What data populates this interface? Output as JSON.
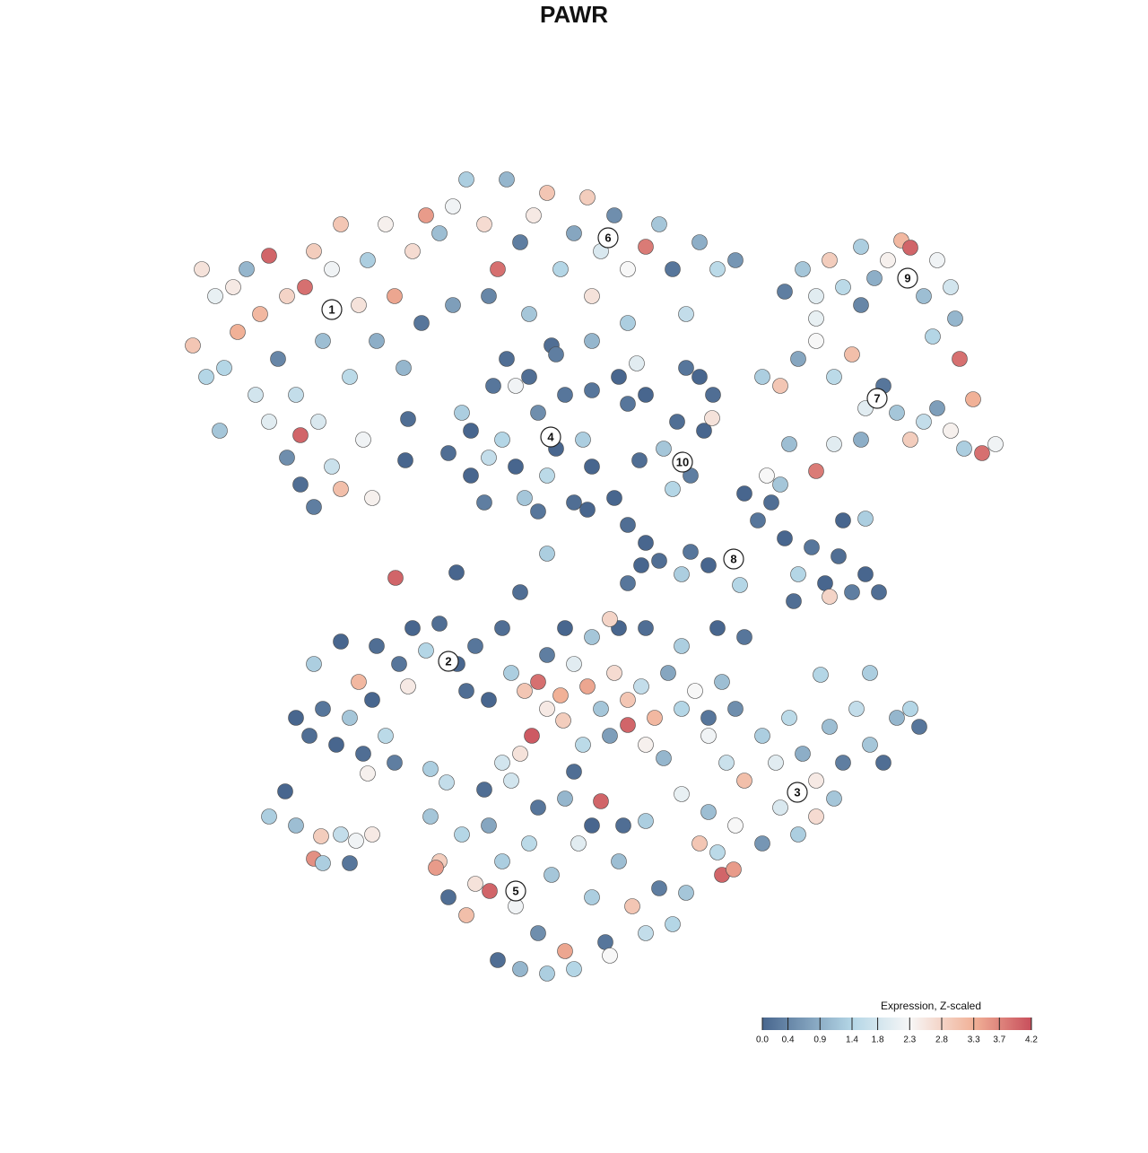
{
  "chart_data": {
    "type": "scatter",
    "title": "PAWR",
    "xlim": [
      0,
      930
    ],
    "ylim": [
      0,
      915
    ],
    "x": [
      15,
      30,
      45,
      60,
      75,
      90,
      100,
      110,
      120,
      130,
      140,
      150,
      155,
      160,
      170,
      180,
      190,
      200,
      210,
      220,
      230,
      240,
      250,
      260,
      270,
      135,
      150,
      170,
      180,
      120,
      100,
      85,
      65,
      40,
      25,
      135,
      205,
      215,
      50,
      290,
      305,
      320,
      340,
      355,
      365,
      380,
      395,
      410,
      425,
      440,
      455,
      470,
      485,
      500,
      520,
      535,
      550,
      565,
      580,
      600,
      620,
      345,
      390,
      415,
      460,
      500,
      510,
      460,
      275,
      305,
      675,
      695,
      710,
      725,
      740,
      760,
      775,
      790,
      805,
      815,
      830,
      845,
      860,
      865,
      870,
      840,
      710,
      760,
      650,
      670,
      690,
      710,
      730,
      750,
      765,
      785,
      800,
      815,
      830,
      845,
      860,
      875,
      885,
      895,
      910,
      680,
      710,
      730,
      760,
      655,
      300,
      315,
      325,
      340,
      350,
      360,
      375,
      385,
      390,
      400,
      410,
      420,
      430,
      440,
      450,
      460,
      365,
      420,
      325,
      400,
      375,
      345,
      255,
      252,
      500,
      520,
      540,
      555,
      570,
      585,
      595,
      565,
      550,
      580,
      594,
      513,
      490,
      460,
      630,
      645,
      660,
      675,
      690,
      705,
      720,
      735,
      750,
      765,
      780,
      740,
      765,
      725,
      685,
      670,
      570,
      590,
      560,
      535,
      515,
      500,
      490,
      410,
      241,
      309,
      380,
      625,
      520,
      500,
      485,
      455,
      130,
      145,
      160,
      175,
      190,
      205,
      215,
      230,
      150,
      180,
      200,
      220,
      245,
      260,
      275,
      290,
      310,
      330,
      320,
      345,
      255,
      360,
      240,
      210,
      280,
      370,
      385,
      400,
      410,
      425,
      440,
      455,
      470,
      485,
      500,
      515,
      530,
      545,
      560,
      575,
      590,
      605,
      620,
      393,
      428,
      450,
      480,
      500,
      520,
      540,
      440,
      360,
      380,
      410,
      430,
      460,
      480,
      520,
      560,
      600,
      630,
      590,
      610,
      630,
      650,
      665,
      680,
      695,
      710,
      725,
      740,
      755,
      770,
      785,
      800,
      815,
      825,
      670,
      690,
      710,
      730,
      650,
      620,
      600,
      580,
      605,
      618,
      590,
      715,
      770,
      560,
      470,
      520,
      280,
      290,
      300,
      315,
      330,
      345,
      346,
      360,
      375,
      390,
      400,
      415,
      430,
      445,
      460,
      475,
      490,
      505,
      520,
      535,
      550,
      565,
      355,
      380,
      410,
      440,
      480,
      320,
      340,
      370,
      400,
      430,
      460,
      495,
      298,
      286,
      100,
      118,
      130,
      158,
      150,
      180,
      197,
      215,
      190,
      160
    ],
    "y": [
      715,
      680,
      620,
      780,
      800,
      750,
      815,
      700,
      770,
      660,
      780,
      820,
      630,
      720,
      800,
      850,
      680,
      760,
      810,
      720,
      850,
      770,
      690,
      820,
      740,
      560,
      535,
      580,
      555,
      590,
      630,
      660,
      730,
      770,
      800,
      615,
      610,
      545,
      690,
      840,
      870,
      900,
      850,
      800,
      900,
      830,
      860,
      885,
      800,
      840,
      880,
      820,
      860,
      800,
      825,
      850,
      800,
      750,
      830,
      800,
      810,
      770,
      750,
      715,
      720,
      740,
      695,
      770,
      860,
      760,
      775,
      800,
      770,
      810,
      780,
      825,
      790,
      810,
      832,
      824,
      770,
      810,
      780,
      745,
      700,
      725,
      745,
      760,
      680,
      670,
      700,
      720,
      680,
      705,
      645,
      670,
      640,
      610,
      630,
      645,
      620,
      600,
      655,
      595,
      605,
      605,
      575,
      605,
      610,
      570,
      595,
      640,
      570,
      540,
      670,
      610,
      580,
      545,
      680,
      640,
      570,
      600,
      660,
      540,
      610,
      580,
      700,
      705,
      620,
      530,
      670,
      590,
      633,
      587,
      650,
      660,
      600,
      630,
      570,
      620,
      660,
      690,
      555,
      680,
      634,
      587,
      680,
      665,
      550,
      520,
      540,
      500,
      460,
      490,
      450,
      480,
      440,
      460,
      440,
      520,
      522,
      435,
      430,
      560,
      485,
      470,
      460,
      475,
      470,
      450,
      400,
      483,
      456,
      462,
      440,
      448,
      495,
      515,
      545,
      532,
      300,
      280,
      310,
      270,
      300,
      260,
      320,
      280,
      360,
      385,
      340,
      380,
      360,
      400,
      375,
      405,
      360,
      380,
      330,
      320,
      335,
      400,
      250,
      238,
      243,
      350,
      330,
      340,
      310,
      325,
      360,
      335,
      310,
      350,
      320,
      335,
      300,
      350,
      310,
      330,
      300,
      340,
      310,
      280,
      297,
      270,
      280,
      292,
      270,
      255,
      240,
      250,
      260,
      370,
      400,
      390,
      410,
      400,
      380,
      400,
      390,
      280,
      250,
      230,
      280,
      250,
      300,
      260,
      230,
      290,
      250,
      310,
      270,
      250,
      300,
      310,
      290,
      200,
      170,
      190,
      210,
      160,
      180,
      150,
      160,
      125,
      131,
      195,
      348,
      350,
      215,
      207,
      185,
      190,
      140,
      100,
      170,
      115,
      180,
      107,
      140,
      90,
      160,
      60,
      125,
      40,
      160,
      100,
      50,
      140,
      90,
      60,
      110,
      70,
      105,
      30,
      20,
      15,
      20,
      35,
      80,
      220,
      230,
      200,
      210,
      180,
      180,
      228,
      133,
      190,
      218,
      180,
      168,
      143,
      170,
      163,
      170,
      138,
      138
    ],
    "values": [
      3.0,
      1.4,
      1.2,
      2.5,
      1.0,
      3.2,
      4.0,
      0.4,
      2.8,
      1.6,
      3.9,
      2.9,
      1.9,
      1.1,
      2.2,
      3.0,
      1.5,
      2.6,
      1.3,
      0.9,
      2.4,
      3.4,
      1.0,
      2.7,
      0.2,
      0.1,
      0.3,
      1.7,
      3.1,
      0.5,
      2.0,
      1.8,
      3.3,
      2.1,
      2.6,
      4.0,
      2.2,
      2.4,
      1.4,
      1.1,
      2.2,
      1.3,
      2.7,
      3.9,
      1.0,
      0.3,
      2.5,
      3.0,
      1.4,
      0.8,
      2.9,
      1.9,
      0.5,
      2.3,
      3.8,
      1.2,
      0.2,
      1.6,
      0.9,
      1.5,
      0.6,
      0.4,
      1.2,
      0.1,
      1.0,
      1.3,
      2.0,
      2.6,
      3.5,
      0.7,
      0.3,
      1.2,
      2.0,
      2.9,
      1.5,
      1.3,
      0.9,
      2.4,
      3.2,
      4.0,
      1.1,
      2.2,
      1.8,
      1.0,
      3.9,
      1.4,
      2.1,
      0.4,
      1.3,
      3.0,
      0.8,
      2.3,
      1.5,
      3.1,
      2.0,
      0.2,
      1.2,
      2.9,
      1.6,
      0.7,
      2.4,
      1.3,
      3.3,
      3.9,
      2.2,
      1.1,
      3.8,
      2.0,
      0.9,
      2.3,
      0.1,
      1.3,
      0.0,
      0.3,
      0.2,
      1.4,
      0.0,
      1.2,
      0.1,
      0.5,
      1.5,
      0.0,
      0.2,
      0.1,
      1.3,
      0.0,
      0.1,
      0.3,
      0.0,
      0.2,
      2.2,
      1.6,
      0.1,
      0.0,
      0.2,
      0.0,
      1.2,
      0.1,
      0.3,
      0.0,
      0.1,
      0.2,
      1.4,
      0.0,
      2.6,
      0.1,
      0.0,
      0.2,
      0.0,
      0.2,
      0.1,
      0.0,
      1.4,
      0.2,
      0.0,
      0.1,
      0.3,
      0.0,
      0.1,
      0.0,
      1.3,
      2.8,
      0.1,
      1.2,
      0.2,
      0.0,
      1.3,
      0.1,
      0.0,
      0.2,
      0.0,
      1.3,
      4.0,
      0.0,
      0.1,
      1.4,
      0.0,
      0.1,
      0.0,
      0.0,
      0.0,
      0.1,
      0.2,
      0.0,
      1.2,
      0.1,
      0.0,
      1.5,
      1.3,
      0.0,
      3.2,
      0.1,
      0.2,
      0.0,
      1.4,
      0.1,
      0.0,
      0.2,
      0.1,
      0.0,
      2.5,
      0.1,
      0.3,
      2.4,
      1.3,
      1.3,
      3.0,
      3.9,
      2.5,
      3.3,
      2.0,
      3.4,
      1.2,
      2.7,
      3.0,
      1.6,
      3.2,
      0.8,
      1.4,
      2.3,
      0.2,
      1.1,
      0.5,
      4.1,
      2.9,
      1.5,
      0.7,
      4.0,
      2.4,
      1.0,
      0.1,
      1.8,
      2.6,
      0.3,
      0.0,
      1.2,
      2.8,
      0.1,
      1.3,
      0.0,
      0.2,
      2.2,
      1.7,
      3.1,
      1.3,
      2.0,
      1.5,
      0.9,
      2.5,
      1.1,
      0.3,
      1.6,
      1.2,
      0.1,
      1.0,
      1.4,
      0.2,
      1.9,
      1.3,
      2.7,
      1.2,
      0.6,
      2.3,
      1.5,
      3.0,
      4.0,
      3.5,
      1.1,
      1.4,
      1.3,
      2.1,
      4.0,
      1.3,
      1.2,
      2.9,
      0.1,
      1.4,
      2.6,
      0.8,
      4.0,
      1.3,
      2.2,
      1.5,
      0.5,
      1.2,
      3.4,
      2.0,
      1.3,
      0.2,
      1.1,
      3.0,
      1.6,
      0.3,
      1.4,
      1.2,
      0.1,
      1.0,
      1.3,
      1.4,
      2.3,
      3.1,
      0.1,
      1.8,
      0.2,
      1.0,
      0.0,
      0.1,
      1.6,
      3.5,
      1.3,
      0.0,
      1.1,
      2.9,
      3.6,
      1.6,
      2.2,
      2.5,
      0.2,
      1.3
    ],
    "cluster_labels": [
      {
        "text": "1",
        "x": 170,
        "y": 755
      },
      {
        "text": "2",
        "x": 300,
        "y": 363
      },
      {
        "text": "3",
        "x": 689,
        "y": 217
      },
      {
        "text": "4",
        "x": 414,
        "y": 613
      },
      {
        "text": "5",
        "x": 375,
        "y": 107
      },
      {
        "text": "6",
        "x": 478,
        "y": 835
      },
      {
        "text": "7",
        "x": 778,
        "y": 656
      },
      {
        "text": "8",
        "x": 618,
        "y": 477
      },
      {
        "text": "9",
        "x": 812,
        "y": 790
      },
      {
        "text": "10",
        "x": 561,
        "y": 585
      }
    ],
    "colorbar": {
      "title": "Expression, Z-scaled",
      "lim": [
        0,
        4.2
      ],
      "ticks": [
        {
          "value": 0,
          "label": "0.0"
        },
        {
          "value": 0.4,
          "label": "0.4"
        },
        {
          "value": 0.9,
          "label": "0.9"
        },
        {
          "value": 1.4,
          "label": "1.4"
        },
        {
          "value": 1.8,
          "label": "1.8"
        },
        {
          "value": 2.3,
          "label": "2.3"
        },
        {
          "value": 2.8,
          "label": "2.8"
        },
        {
          "value": 3.3,
          "label": "3.3"
        },
        {
          "value": 3.7,
          "label": "3.7"
        },
        {
          "value": 4.2,
          "label": "4.2"
        }
      ],
      "colorscale": [
        [
          0,
          "#48668e"
        ],
        [
          1.4,
          "#b4d6e6"
        ],
        [
          2.3,
          "#f7f7f7"
        ],
        [
          3.3,
          "#f1b197"
        ],
        [
          4.2,
          "#c84f5c"
        ]
      ]
    }
  }
}
